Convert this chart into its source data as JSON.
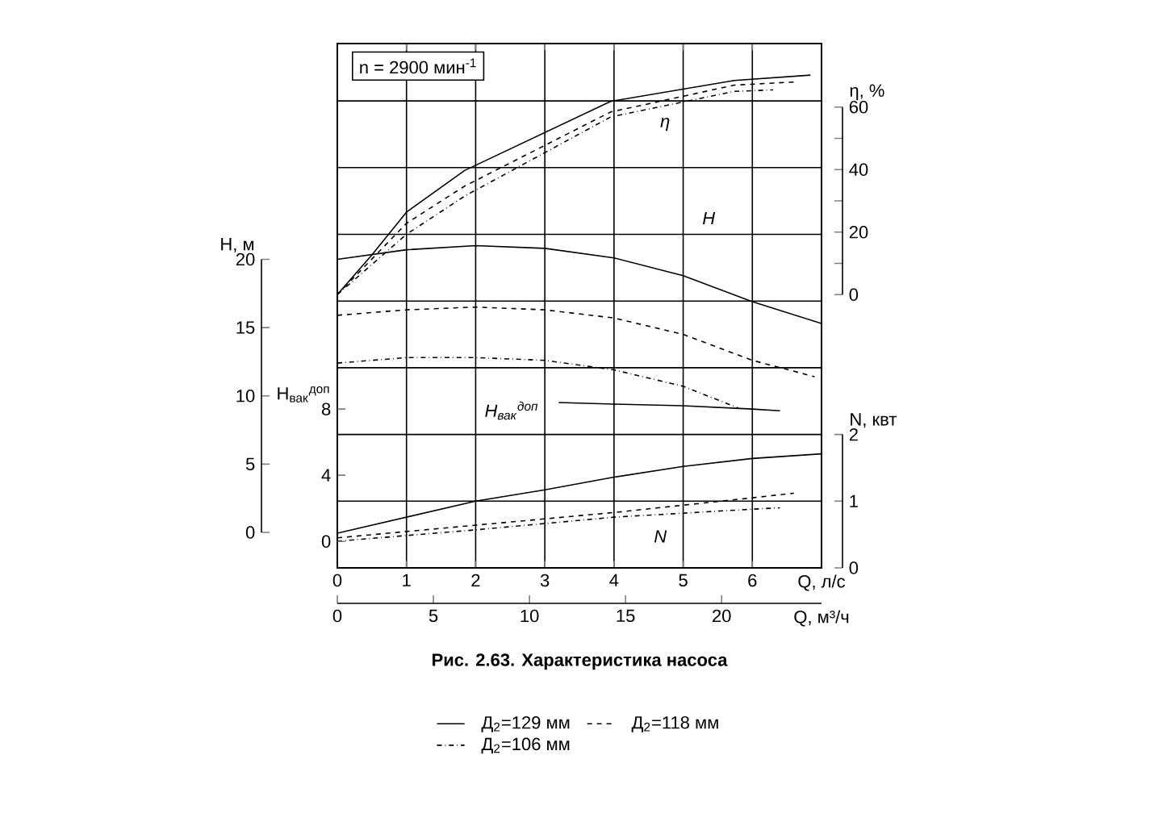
{
  "chart_data": [
    {
      "type": "line",
      "title": "Рис. 2.63. Характеристика насоса",
      "xlabel": "Q, л/с",
      "x2label": "Q, м³/ч",
      "ylabel": "H, м",
      "y2label": "N, квт",
      "xlim": [
        0,
        7
      ],
      "xticks": [
        0,
        1,
        2,
        3,
        4,
        5,
        6
      ],
      "x2lim": [
        0,
        25.2
      ],
      "x2ticks": [
        0,
        5,
        10,
        15,
        20
      ],
      "ylim": [
        -2.6,
        35.8
      ],
      "yticks": [
        0,
        5,
        10,
        15,
        20
      ],
      "y2lim": [
        0,
        7.86
      ],
      "y2ticks": [
        0,
        1,
        2,
        {
          "value": 3,
          "label": null
        },
        {
          "value": 4,
          "label": null
        },
        {
          "value": 5,
          "label": null
        },
        {
          "value": 6,
          "label": null
        },
        {
          "value": 7,
          "label": null
        }
      ],
      "grid": true,
      "legend": "bottom",
      "series": [
        {
          "name": "Д$_{2}$=129 мм",
          "color": "#000000",
          "line_style": "solid",
          "x": [
            0,
            1,
            2,
            3,
            4,
            5,
            6,
            7
          ],
          "values": [
            20.0,
            20.7,
            21.0,
            20.8,
            20.1,
            18.8,
            16.9,
            15.3
          ]
        },
        {
          "name": "Д$_{2}$=118 мм",
          "color": "#000000",
          "line_style": "dashed",
          "x": [
            0,
            1,
            2,
            3,
            4,
            5,
            6,
            6.9
          ],
          "values": [
            15.9,
            16.3,
            16.5,
            16.3,
            15.7,
            14.5,
            12.6,
            11.4
          ]
        },
        {
          "name": "Д$_{2}$=106 мм",
          "color": "#000000",
          "line_style": "dashdot",
          "x": [
            0,
            1,
            2,
            3,
            4,
            5,
            5.8
          ],
          "values": [
            12.4,
            12.8,
            12.8,
            12.6,
            11.9,
            10.7,
            9.1
          ]
        },
        {
          "color": "#000000",
          "axis": "y2",
          "line_style": "solid",
          "x": [
            0,
            2,
            3,
            4,
            5,
            6,
            7
          ],
          "values": [
            0.52,
            1.0,
            1.17,
            1.36,
            1.52,
            1.64,
            1.71
          ]
        },
        {
          "color": "#000000",
          "axis": "y2",
          "line_style": "dashed",
          "x": [
            0,
            2,
            4,
            6,
            6.6
          ],
          "values": [
            0.45,
            0.64,
            0.83,
            1.05,
            1.12
          ]
        },
        {
          "color": "#000000",
          "axis": "y2",
          "line_style": "dashdot",
          "x": [
            0,
            2,
            4,
            6,
            6.4
          ],
          "values": [
            0.4,
            0.57,
            0.76,
            0.88,
            0.9
          ]
        }
      ],
      "annotations": [
        "η",
        "H",
        "H$_{вак}$$^{доп}$",
        "N",
        "n = 2900 мин$^{-1}$"
      ]
    },
    {
      "type": "line",
      "ylabel": "η, %",
      "y2label": "H$_{вак}$$^{доп}$",
      "tick_labels": "y",
      "xlim": [
        0,
        7
      ],
      "ylim": [
        -87.4,
        80.3
      ],
      "yticks": [
        0,
        {
          "value": 10,
          "label": null
        },
        20,
        {
          "value": 30,
          "label": null
        },
        40,
        {
          "value": 50,
          "label": null
        },
        60
      ],
      "y2lim": [
        -1.6,
        30.1
      ],
      "y2ticks": [
        0,
        4,
        8
      ],
      "series": [
        {
          "color": "#000000",
          "line_style": "solid",
          "x": [
            0,
            0.5,
            1,
            1.84,
            3.95,
            5.74,
            6.84
          ],
          "values": [
            0,
            12.7,
            26.4,
            39.7,
            61.8,
            68.5,
            70.2
          ]
        },
        {
          "color": "#000000",
          "line_style": "dashed",
          "x": [
            0,
            1,
            1.84,
            3.95,
            5.74,
            6.6
          ],
          "values": [
            0,
            22.8,
            34.7,
            58.4,
            67,
            68
          ]
        },
        {
          "color": "#000000",
          "line_style": "dashdot",
          "x": [
            0,
            1,
            1.84,
            3.95,
            5.74,
            6.3
          ],
          "values": [
            0,
            19.3,
            31.5,
            56.8,
            65,
            65.5
          ]
        },
        {
          "color": "#000000",
          "axis": "y2",
          "line_style": "solid",
          "x": [
            3.2,
            4,
            5,
            6,
            6.4
          ],
          "values": [
            8.4,
            8.3,
            8.2,
            8.0,
            7.9
          ]
        }
      ]
    }
  ]
}
